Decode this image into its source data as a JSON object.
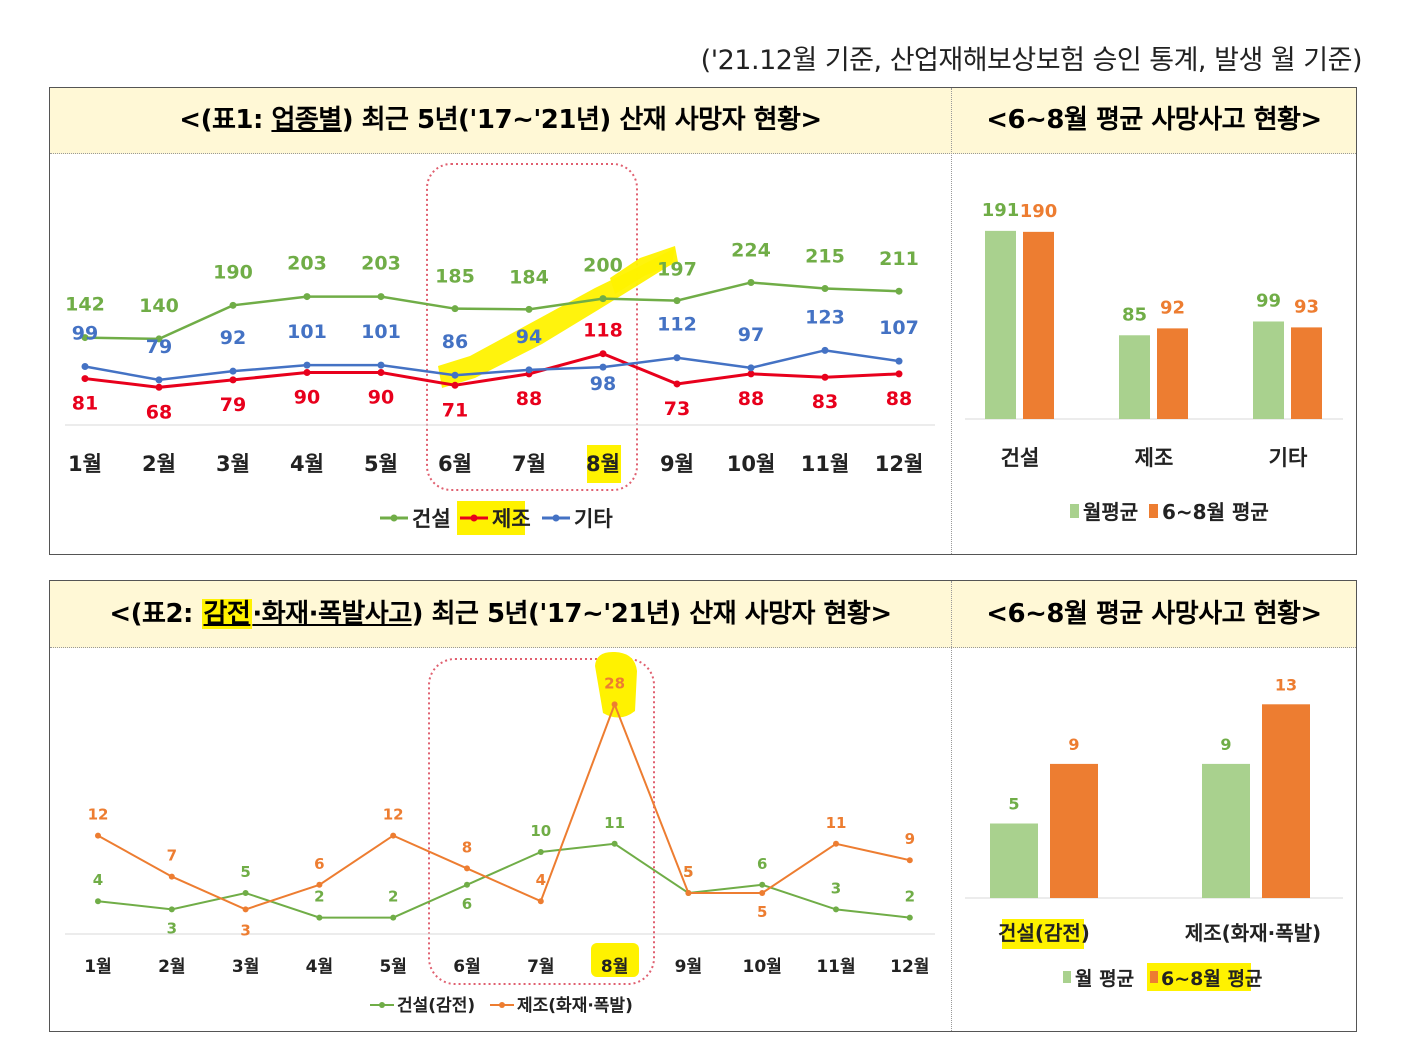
{
  "source_note": "('21.12월 기준, 산업재해보상보험 승인 통계, 발생 월 기준)",
  "panel1": {
    "title": {
      "pre": "<(표1: ",
      "key": "업종별",
      "post": ") 최근 5년('17~'21년) 산재 사망자 현황>"
    },
    "side_title": "<6~8월 평균 사망사고 현황>"
  },
  "panel2": {
    "title": {
      "pre": "<(표2: ",
      "key1": "감전",
      "mid": "·화재·폭발사고",
      "post": ") 최근 5년('17~'21년) 산재 사망자 현황>"
    },
    "side_title": "<6~8월 평균 사망사고 현황>"
  },
  "colors": {
    "green": "#70ad47",
    "red": "#e8001c",
    "blue": "#4472c4",
    "orange": "#ed7d31",
    "light_green": "#a9d18e",
    "highlight": "#fff200",
    "box": "#e06070"
  },
  "chart_data": [
    {
      "type": "line",
      "title": "업종별 최근 5년('17~'21년) 산재 사망자 현황",
      "categories": [
        "1월",
        "2월",
        "3월",
        "4월",
        "5월",
        "6월",
        "7월",
        "8월",
        "9월",
        "10월",
        "11월",
        "12월"
      ],
      "series": [
        {
          "name": "건설",
          "values": [
            142,
            140,
            190,
            203,
            203,
            185,
            184,
            200,
            197,
            224,
            215,
            211
          ]
        },
        {
          "name": "제조",
          "values": [
            81,
            68,
            79,
            90,
            90,
            71,
            88,
            118,
            73,
            88,
            83,
            88
          ]
        },
        {
          "name": "기타",
          "values": [
            99,
            79,
            92,
            101,
            101,
            86,
            94,
            98,
            112,
            97,
            123,
            107
          ]
        }
      ],
      "legend": [
        "건설",
        "제조",
        "기타"
      ],
      "highlight_months": [
        "6월",
        "7월",
        "8월"
      ]
    },
    {
      "type": "bar",
      "title": "6~8월 평균 사망사고 현황",
      "categories": [
        "건설",
        "제조",
        "기타"
      ],
      "series": [
        {
          "name": "월평균",
          "values": [
            191,
            85,
            99
          ]
        },
        {
          "name": "6~8월 평균",
          "values": [
            190,
            92,
            93
          ]
        }
      ]
    },
    {
      "type": "line",
      "title": "감전·화재·폭발사고 최근 5년('17~'21년) 산재 사망자 현황",
      "categories": [
        "1월",
        "2월",
        "3월",
        "4월",
        "5월",
        "6월",
        "7월",
        "8월",
        "9월",
        "10월",
        "11월",
        "12월"
      ],
      "series": [
        {
          "name": "건설(감전)",
          "values": [
            4,
            3,
            5,
            2,
            2,
            6,
            10,
            11,
            5,
            6,
            3,
            2
          ]
        },
        {
          "name": "제조(화재·폭발)",
          "values": [
            12,
            7,
            3,
            6,
            12,
            8,
            4,
            28,
            5,
            5,
            11,
            9
          ]
        }
      ],
      "legend": [
        "건설(감전)",
        "제조(화재·폭발)"
      ],
      "highlight_months": [
        "6월",
        "7월",
        "8월"
      ]
    },
    {
      "type": "bar",
      "title": "6~8월 평균 사망사고 현황",
      "categories": [
        "건설(감전)",
        "제조(화재·폭발)"
      ],
      "series": [
        {
          "name": "월 평균",
          "values": [
            5,
            9
          ]
        },
        {
          "name": "6~8월 평균",
          "values": [
            9,
            13
          ]
        }
      ]
    }
  ]
}
